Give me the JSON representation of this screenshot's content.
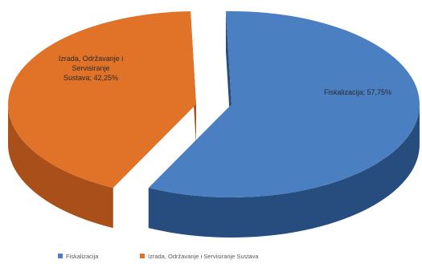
{
  "chart_data": {
    "type": "pie",
    "style": "3d-exploded",
    "title": "",
    "slices": [
      {
        "name": "Fiskalizacija",
        "value": 57.75,
        "label": "Fiskalizacija; 57,75%",
        "color": "#4a7fc1",
        "side_color": "#264d7e"
      },
      {
        "name": "Izrada, Održavanje i Servisiranje Sustava",
        "value": 42.25,
        "label": "Izrada, Održavanje i Servisiranje Sustava; 42,25%",
        "color": "#e07328",
        "side_color": "#a9501a"
      }
    ],
    "legend_position": "bottom"
  }
}
